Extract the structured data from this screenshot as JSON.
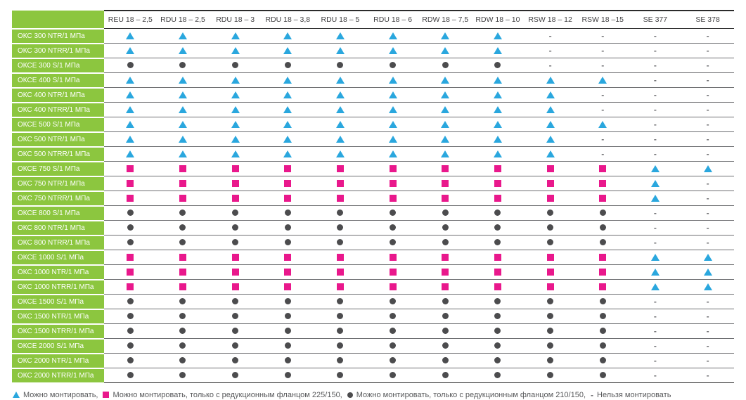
{
  "table": {
    "columns": [
      "REU 18 – 2,5",
      "RDU 18 – 2,5",
      "RDU 18 – 3",
      "RDU 18 – 3,8",
      "RDU 18 – 5",
      "RDU 18 – 6",
      "RDW 18 – 7,5",
      "RDW 18 – 10",
      "RSW 18 – 12",
      "RSW 18 –15",
      "SE 377",
      "SE 378"
    ],
    "rows": [
      {
        "label": "ОКС 300 NTR/1 МПа",
        "cells": [
          "t",
          "t",
          "t",
          "t",
          "t",
          "t",
          "t",
          "t",
          "-",
          "-",
          "-",
          "-"
        ]
      },
      {
        "label": "ОКС 300 NTRR/1 МПа",
        "cells": [
          "t",
          "t",
          "t",
          "t",
          "t",
          "t",
          "t",
          "t",
          "-",
          "-",
          "-",
          "-"
        ]
      },
      {
        "label": "ОКСЕ 300 S/1 МПа",
        "cells": [
          "c",
          "c",
          "c",
          "c",
          "c",
          "c",
          "c",
          "c",
          "-",
          "-",
          "-",
          "-"
        ]
      },
      {
        "label": "ОКСЕ 400 S/1 МПа",
        "cells": [
          "t",
          "t",
          "t",
          "t",
          "t",
          "t",
          "t",
          "t",
          "t",
          "t",
          "-",
          "-"
        ]
      },
      {
        "label": "ОКС 400 NTR/1 МПа",
        "cells": [
          "t",
          "t",
          "t",
          "t",
          "t",
          "t",
          "t",
          "t",
          "t",
          "-",
          "-",
          "-"
        ]
      },
      {
        "label": "ОКС 400 NTRR/1 МПа",
        "cells": [
          "t",
          "t",
          "t",
          "t",
          "t",
          "t",
          "t",
          "t",
          "t",
          "-",
          "-",
          "-"
        ]
      },
      {
        "label": "ОКСЕ 500 S/1 МПа",
        "cells": [
          "t",
          "t",
          "t",
          "t",
          "t",
          "t",
          "t",
          "t",
          "t",
          "t",
          "-",
          "-"
        ]
      },
      {
        "label": "ОКС 500 NTR/1 МПа",
        "cells": [
          "t",
          "t",
          "t",
          "t",
          "t",
          "t",
          "t",
          "t",
          "t",
          "-",
          "-",
          "-"
        ]
      },
      {
        "label": "ОКС 500 NTRR/1 МПа",
        "cells": [
          "t",
          "t",
          "t",
          "t",
          "t",
          "t",
          "t",
          "t",
          "t",
          "-",
          "-",
          "-"
        ]
      },
      {
        "label": "ОКСЕ 750 S/1 МПа",
        "cells": [
          "s",
          "s",
          "s",
          "s",
          "s",
          "s",
          "s",
          "s",
          "s",
          "s",
          "t",
          "t"
        ]
      },
      {
        "label": "ОКС 750 NTR/1 МПа",
        "cells": [
          "s",
          "s",
          "s",
          "s",
          "s",
          "s",
          "s",
          "s",
          "s",
          "s",
          "t",
          "-"
        ]
      },
      {
        "label": "ОКС 750 NTRR/1 МПа",
        "cells": [
          "s",
          "s",
          "s",
          "s",
          "s",
          "s",
          "s",
          "s",
          "s",
          "s",
          "t",
          "-"
        ]
      },
      {
        "label": "ОКСЕ 800 S/1 МПа",
        "cells": [
          "c",
          "c",
          "c",
          "c",
          "c",
          "c",
          "c",
          "c",
          "c",
          "c",
          "-",
          "-"
        ]
      },
      {
        "label": "ОКС 800 NTR/1 МПа",
        "cells": [
          "c",
          "c",
          "c",
          "c",
          "c",
          "c",
          "c",
          "c",
          "c",
          "c",
          "-",
          "-"
        ]
      },
      {
        "label": "ОКС 800 NTRR/1 МПа",
        "cells": [
          "c",
          "c",
          "c",
          "c",
          "c",
          "c",
          "c",
          "c",
          "c",
          "c",
          "-",
          "-"
        ]
      },
      {
        "label": "ОКСЕ 1000 S/1 МПа",
        "cells": [
          "s",
          "s",
          "s",
          "s",
          "s",
          "s",
          "s",
          "s",
          "s",
          "s",
          "t",
          "t"
        ]
      },
      {
        "label": "ОКС 1000 NTR/1 МПа",
        "cells": [
          "s",
          "s",
          "s",
          "s",
          "s",
          "s",
          "s",
          "s",
          "s",
          "s",
          "t",
          "t"
        ]
      },
      {
        "label": "ОКС 1000 NTRR/1 МПа",
        "cells": [
          "s",
          "s",
          "s",
          "s",
          "s",
          "s",
          "s",
          "s",
          "s",
          "s",
          "t",
          "t"
        ]
      },
      {
        "label": "ОКСЕ 1500 S/1 МПа",
        "cells": [
          "c",
          "c",
          "c",
          "c",
          "c",
          "c",
          "c",
          "c",
          "c",
          "c",
          "-",
          "-"
        ]
      },
      {
        "label": "ОКС 1500 NTR/1 МПа",
        "cells": [
          "c",
          "c",
          "c",
          "c",
          "c",
          "c",
          "c",
          "c",
          "c",
          "c",
          "-",
          "-"
        ]
      },
      {
        "label": "ОКС 1500 NTRR/1 МПа",
        "cells": [
          "c",
          "c",
          "c",
          "c",
          "c",
          "c",
          "c",
          "c",
          "c",
          "c",
          "-",
          "-"
        ]
      },
      {
        "label": "ОКСЕ 2000 S/1 МПа",
        "cells": [
          "c",
          "c",
          "c",
          "c",
          "c",
          "c",
          "c",
          "c",
          "c",
          "c",
          "-",
          "-"
        ]
      },
      {
        "label": "ОКС 2000 NTR/1 МПа",
        "cells": [
          "c",
          "c",
          "c",
          "c",
          "c",
          "c",
          "c",
          "c",
          "c",
          "c",
          "-",
          "-"
        ]
      },
      {
        "label": "ОКС 2000 NTRR/1 МПа",
        "cells": [
          "c",
          "c",
          "c",
          "c",
          "c",
          "c",
          "c",
          "c",
          "c",
          "c",
          "-",
          "-"
        ]
      }
    ]
  },
  "symbols": {
    "dash": "-",
    "triangle_meaning": "Можно монтировать",
    "square_meaning": "Можно монтировать, только с редукционным фланцом 225/150",
    "circle_meaning": "Можно монтировать, только с редукционным фланцом 210/150",
    "dash_meaning": "Нельзя монтировать"
  },
  "legend": {
    "items": [
      {
        "symbol": "triangle",
        "text": "Можно монтировать,"
      },
      {
        "symbol": "square",
        "text": "Можно монтировать, только с редукционным фланцом 225/150,"
      },
      {
        "symbol": "circle",
        "text": "Можно монтировать, только с редукционным фланцом 210/150,"
      },
      {
        "symbol": "dash",
        "text": "Нельзя монтировать"
      }
    ]
  },
  "colors": {
    "row_label_bg": "#8CC63F",
    "triangle": "#2AA7DE",
    "square": "#E9188C",
    "circle": "#4C4C4E",
    "dash": "#6D6E71",
    "legend_text": "#58595B",
    "header_text": "#414042",
    "border": "#6D6E71",
    "strong_border": "#2B2B2B"
  }
}
